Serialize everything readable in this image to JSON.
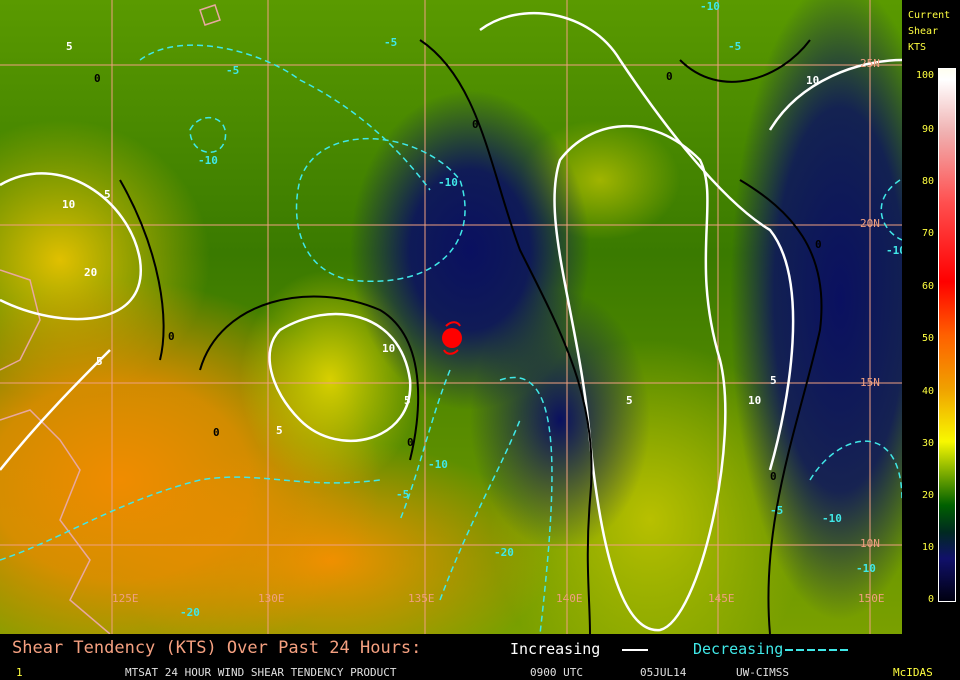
{
  "legend": {
    "title_lines": [
      "Current",
      "Shear",
      "KTS"
    ],
    "ticks": [
      "100",
      "90",
      "80",
      "70",
      "60",
      "50",
      "40",
      "30",
      "20",
      "10",
      "0"
    ]
  },
  "map": {
    "lon_labels": [
      "125E",
      "130E",
      "135E",
      "140E",
      "145E",
      "150E"
    ],
    "lat_labels": [
      "25N",
      "20N",
      "15N",
      "10N"
    ],
    "contour_labels": {
      "white": [
        "5",
        "10",
        "20",
        "5",
        "10",
        "5",
        "5",
        "5",
        "10",
        "5",
        "10",
        "5"
      ],
      "black": [
        "0",
        "0",
        "0",
        "0",
        "0",
        "0",
        "0",
        "0"
      ],
      "cyan": [
        "-5",
        "-5",
        "-10",
        "-10",
        "-10",
        "-5",
        "-10",
        "-5",
        "-20",
        "-20",
        "-10",
        "-5",
        "-10",
        "-10"
      ]
    },
    "storm_icon": "tropical-cyclone-icon",
    "storm_color": "#ff0000"
  },
  "footer": {
    "title": "Shear Tendency (KTS) Over Past 24 Hours:",
    "increasing": "Increasing",
    "decreasing": "Decreasing",
    "frame": "1",
    "product": "MTSAT 24 HOUR WIND SHEAR TENDENCY PRODUCT",
    "time": "0900 UTC",
    "date": "05JUL14",
    "source": "UW-CIMSS",
    "software": "McIDAS"
  },
  "colors": {
    "increasing": "#ffffff",
    "decreasing": "#40e8e8",
    "zero": "#000000",
    "grid": "#f0a080",
    "legend_text": "#ffff40"
  }
}
